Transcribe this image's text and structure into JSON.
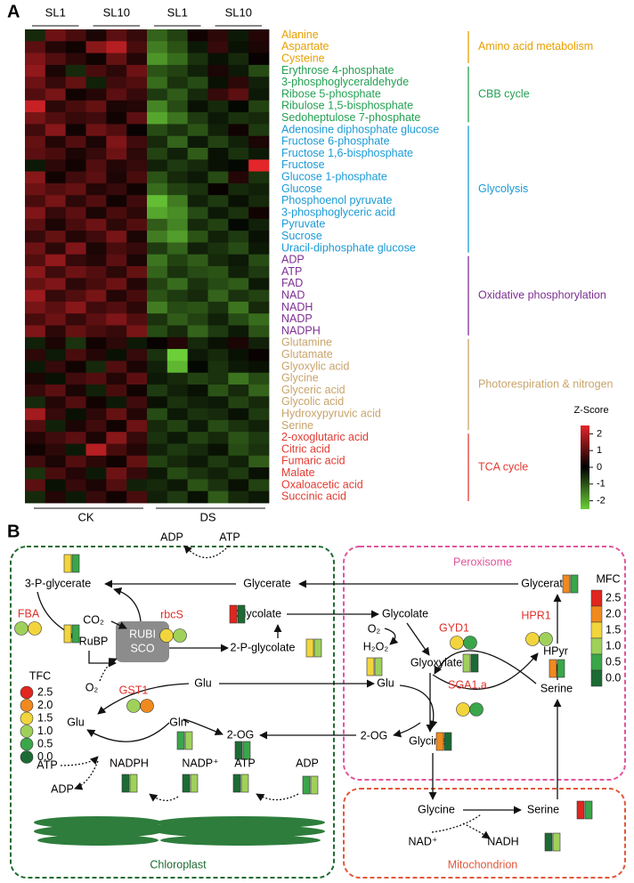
{
  "panels": [
    "A",
    "B"
  ],
  "chart_data": {
    "type": "heatmap",
    "columns": [
      "SL1",
      "SL10",
      "SL1",
      "SL10"
    ],
    "column_groups": [
      "CK",
      "DS"
    ],
    "groups": [
      {
        "name": "Amino acid metabolism",
        "color": "#e8a000",
        "rows": [
          "Alanine",
          "Aspartate",
          "Cysteine"
        ]
      },
      {
        "name": "CBB cycle",
        "color": "#23a052",
        "rows": [
          "Erythrose 4-phosphate",
          "3-phosphoglyceraldehyde",
          "Ribose 5-phosphate",
          "Ribulose 1,5-bisphosphate",
          "Sedoheptulose 7-phosphate"
        ]
      },
      {
        "name": "Glycolysis",
        "color": "#1b9ad6",
        "rows": [
          "Adenosine diphosphate glucose",
          "Fructose 6-phosphate",
          "Fructose 1,6-bisphosphate",
          "Fructose",
          "Glucose 1-phosphate",
          "Glucose",
          "Phosphoenol pyruvate",
          "3-phosphoglyceric acid",
          "Pyruvate",
          "Sucrose",
          "Uracil-diphosphate glucose"
        ]
      },
      {
        "name": "Oxidative phosphorylation",
        "color": "#7d2f92",
        "rows": [
          "ADP",
          "ATP",
          "FAD",
          "NAD",
          "NADH",
          "NADP",
          "NADPH"
        ]
      },
      {
        "name": "Photorespiration & nitrogen",
        "color": "#c8a46a",
        "rows": [
          "Glutamine",
          "Glutamate",
          "Glyoxylic acid",
          "Glycine",
          "Glyceric acid",
          "Glycolic acid",
          "Hydroxypyruvic acid",
          "Serine"
        ]
      },
      {
        "name": "TCA cycle",
        "color": "#e23b33",
        "rows": [
          "2-oxoglutaric acid",
          "Citric acid",
          "Fumaric acid",
          "Malate",
          "Oxaloacetic acid",
          "Succinic acid"
        ]
      }
    ],
    "values": [
      [
        -0.5,
        1.2,
        0.8,
        0.3,
        1.0,
        0.6,
        -1.2,
        -0.8,
        0.2,
        0.5,
        -0.3,
        0.4
      ],
      [
        1.0,
        0.4,
        0.2,
        1.5,
        2.0,
        0.8,
        -1.5,
        -1.0,
        -0.3,
        0.6,
        -0.2,
        0.3
      ],
      [
        1.4,
        0.9,
        0.5,
        0.2,
        1.1,
        0.4,
        -1.8,
        -1.3,
        -0.6,
        -0.2,
        -0.5,
        0.1
      ],
      [
        1.6,
        0.3,
        -0.5,
        0.8,
        0.5,
        1.2,
        -1.0,
        -0.8,
        -0.4,
        0.3,
        -0.3,
        -0.9
      ],
      [
        1.2,
        0.6,
        1.1,
        -0.4,
        0.7,
        0.9,
        -1.3,
        -0.6,
        -0.9,
        -0.2,
        0.5,
        -0.4
      ],
      [
        0.9,
        1.3,
        0.2,
        0.4,
        1.0,
        0.6,
        -0.7,
        -1.1,
        -0.5,
        0.6,
        1.0,
        -0.3
      ],
      [
        2.2,
        0.5,
        0.8,
        1.1,
        0.3,
        0.4,
        -1.6,
        -0.9,
        -0.2,
        -0.5,
        -0.1,
        -0.8
      ],
      [
        1.3,
        0.9,
        0.6,
        0.7,
        0.2,
        1.0,
        -2.0,
        -1.4,
        -0.7,
        -0.3,
        -0.6,
        -0.5
      ],
      [
        0.7,
        1.5,
        0.2,
        1.2,
        0.9,
        0.1,
        -0.9,
        -0.6,
        -1.0,
        -0.4,
        0.2,
        -0.7
      ],
      [
        1.1,
        0.4,
        0.9,
        0.3,
        1.4,
        0.7,
        -0.5,
        -1.2,
        -0.3,
        -0.8,
        -0.4,
        0.3
      ],
      [
        1.0,
        0.8,
        0.3,
        0.6,
        1.2,
        0.5,
        -0.8,
        -0.4,
        -1.1,
        -0.2,
        -0.6,
        -0.3
      ],
      [
        -0.3,
        0.5,
        0.2,
        0.9,
        0.4,
        0.6,
        -0.4,
        -0.7,
        -0.5,
        -0.2,
        -0.1,
        2.5
      ],
      [
        1.5,
        0.2,
        0.7,
        1.0,
        0.3,
        0.8,
        -1.0,
        -0.5,
        -0.3,
        -0.9,
        0.4,
        -0.6
      ],
      [
        1.2,
        0.9,
        1.1,
        0.4,
        0.6,
        0.2,
        -1.3,
        -0.8,
        -0.6,
        0.1,
        -0.5,
        -0.4
      ],
      [
        0.8,
        1.3,
        0.5,
        0.9,
        0.2,
        0.7,
        -2.3,
        -1.5,
        -0.4,
        -0.7,
        -0.2,
        -0.5
      ],
      [
        1.4,
        0.6,
        1.0,
        0.3,
        0.8,
        0.5,
        -2.0,
        -1.7,
        -0.9,
        -0.3,
        -0.6,
        0.2
      ],
      [
        1.0,
        0.3,
        0.8,
        1.2,
        0.5,
        0.9,
        -1.1,
        -1.6,
        -0.5,
        -0.8,
        -0.1,
        -0.4
      ],
      [
        0.6,
        1.1,
        0.4,
        0.7,
        1.3,
        0.3,
        -1.5,
        -1.9,
        -1.0,
        -0.4,
        -0.7,
        -0.2
      ],
      [
        1.2,
        0.5,
        1.4,
        0.3,
        0.8,
        0.6,
        -0.7,
        -1.2,
        -0.4,
        -0.6,
        -0.9,
        -0.3
      ],
      [
        0.9,
        1.6,
        0.6,
        0.4,
        1.0,
        0.3,
        -1.4,
        -0.8,
        -1.1,
        -0.5,
        -0.3,
        -0.9
      ],
      [
        1.5,
        0.7,
        1.2,
        0.9,
        0.5,
        1.1,
        -1.2,
        -0.6,
        -0.9,
        -1.0,
        -0.4,
        -0.7
      ],
      [
        1.1,
        1.4,
        0.5,
        0.8,
        1.2,
        0.4,
        -0.8,
        -1.3,
        -0.6,
        -0.9,
        -1.1,
        -0.3
      ],
      [
        1.7,
        0.6,
        0.9,
        1.3,
        0.4,
        0.8,
        -1.0,
        -0.7,
        -0.5,
        -1.2,
        -0.6,
        -0.8
      ],
      [
        1.3,
        1.0,
        1.5,
        0.7,
        0.9,
        0.5,
        -1.5,
        -0.9,
        -1.0,
        -0.6,
        -1.4,
        -0.5
      ],
      [
        0.8,
        1.2,
        0.6,
        1.0,
        1.4,
        0.9,
        -0.6,
        -1.1,
        -0.8,
        -0.4,
        -0.9,
        -1.3
      ],
      [
        1.4,
        0.5,
        1.1,
        0.8,
        0.6,
        1.3,
        -0.9,
        -0.5,
        -1.2,
        -0.7,
        -0.3,
        -1.0
      ],
      [
        -0.4,
        0.3,
        -0.6,
        0.2,
        0.5,
        -0.3,
        0.1,
        0.4,
        -0.5,
        -0.2,
        0.3,
        -0.4
      ],
      [
        0.5,
        -0.3,
        0.8,
        0.4,
        -0.2,
        0.6,
        -0.6,
        -2.5,
        -0.3,
        -0.5,
        -0.2,
        0.1
      ],
      [
        -0.3,
        0.6,
        0.2,
        -0.5,
        0.9,
        0.3,
        -0.4,
        -2.2,
        -0.1,
        -0.6,
        -0.3,
        -0.2
      ],
      [
        0.3,
        -0.2,
        0.7,
        0.9,
        0.4,
        1.0,
        -0.3,
        -0.5,
        -0.8,
        -0.6,
        -1.4,
        -0.9
      ],
      [
        0.6,
        1.0,
        0.3,
        -0.4,
        0.8,
        0.2,
        -0.7,
        -0.4,
        -0.2,
        -1.0,
        -0.5,
        -1.2
      ],
      [
        -0.5,
        0.4,
        0.9,
        0.2,
        -0.3,
        0.7,
        -0.2,
        -0.6,
        -0.4,
        -0.3,
        -0.8,
        -0.5
      ],
      [
        1.8,
        0.6,
        -0.2,
        0.5,
        1.1,
        0.4,
        -0.9,
        -0.3,
        -0.6,
        -0.5,
        -0.2,
        -0.7
      ],
      [
        0.9,
        -0.4,
        0.3,
        0.7,
        0.2,
        1.2,
        -0.5,
        -0.8,
        -0.3,
        -0.9,
        -0.6,
        -0.4
      ],
      [
        0.4,
        0.7,
        1.0,
        0.3,
        1.5,
        0.6,
        -0.6,
        -0.3,
        -0.8,
        -0.5,
        -1.0,
        -0.7
      ],
      [
        0.2,
        0.5,
        -0.3,
        2.0,
        0.8,
        0.4,
        -0.4,
        -0.7,
        -0.5,
        -0.2,
        -0.9,
        -0.6
      ],
      [
        0.7,
        0.3,
        0.9,
        0.5,
        0.2,
        1.1,
        -0.8,
        -0.5,
        -0.3,
        -0.7,
        -0.4,
        -1.1
      ],
      [
        -0.6,
        0.8,
        0.4,
        -0.3,
        1.2,
        0.6,
        -0.3,
        -0.9,
        -0.6,
        -0.4,
        -0.7,
        -0.2
      ],
      [
        1.0,
        -0.2,
        0.6,
        0.3,
        0.9,
        -0.4,
        -0.5,
        -0.3,
        -1.0,
        -0.6,
        -0.2,
        -0.8
      ],
      [
        -0.5,
        0.4,
        -0.3,
        0.6,
        0.2,
        0.8,
        -0.4,
        -0.7,
        -0.2,
        -1.1,
        -0.5,
        -0.3
      ]
    ],
    "colorbar_title": "Z-Score",
    "zlim": [
      -2.5,
      2.5
    ],
    "zticks": [
      -2,
      -1,
      0,
      1,
      2
    ],
    "colors": [
      "#6ccf38",
      "#000000",
      "#e3262a"
    ]
  },
  "diagram": {
    "compartments": [
      {
        "name": "Chloroplast",
        "color": "#1e6b30"
      },
      {
        "name": "Peroxisome",
        "color": "#e0569a"
      },
      {
        "name": "Mitochondrion",
        "color": "#e2583a"
      }
    ],
    "rubisco": [
      "RUBI",
      "SCO"
    ],
    "genes": [
      {
        "name": "FBA",
        "tfc": [
          1.0,
          1.5
        ]
      },
      {
        "name": "rbcS",
        "tfc": [
          1.5,
          1.0
        ]
      },
      {
        "name": "GYD1",
        "tfc": [
          1.5,
          0.5
        ]
      },
      {
        "name": "HPR1",
        "tfc": [
          1.5,
          1.0
        ]
      },
      {
        "name": "GST1",
        "tfc": [
          1.0,
          2.0
        ]
      },
      {
        "name": "SGA1.a",
        "tfc": [
          1.5,
          0.5
        ]
      }
    ],
    "metabolites": [
      {
        "name": "ADP"
      },
      {
        "name": "ATP"
      },
      {
        "name": "3-P-glycerate",
        "mfc": [
          1.5,
          0.5
        ]
      },
      {
        "name": "Glycerate"
      },
      {
        "name": "Glycerate",
        "mfc": [
          2.0,
          0.5
        ]
      },
      {
        "name": "CO₂"
      },
      {
        "name": "RuBP",
        "mfc": [
          1.5,
          0.5
        ]
      },
      {
        "name": "Glycolate",
        "mfc": [
          2.5,
          0.0
        ]
      },
      {
        "name": "Glycolate"
      },
      {
        "name": "O₂"
      },
      {
        "name": "H₂O₂"
      },
      {
        "name": "Glyoxylate",
        "mfc": [
          1.0,
          0.0
        ]
      },
      {
        "name": "2-P-glycolate",
        "mfc": [
          1.5,
          1.0
        ]
      },
      {
        "name": "HPyr",
        "mfc": [
          2.0,
          0.5
        ]
      },
      {
        "name": "Serine"
      },
      {
        "name": "O₂"
      },
      {
        "name": "Glu"
      },
      {
        "name": "Glu",
        "mfc": [
          1.5,
          1.0
        ]
      },
      {
        "name": "Glu"
      },
      {
        "name": "Gln",
        "mfc": [
          0.5,
          1.0
        ]
      },
      {
        "name": "2-OG",
        "mfc": [
          0.0,
          0.5
        ]
      },
      {
        "name": "2-OG"
      },
      {
        "name": "Glycine",
        "mfc": [
          2.0,
          0.0
        ]
      },
      {
        "name": "ATP"
      },
      {
        "name": "ADP"
      },
      {
        "name": "NADPH",
        "mfc": [
          0.0,
          1.0
        ]
      },
      {
        "name": "NADP⁺",
        "mfc": [
          0.0,
          1.0
        ]
      },
      {
        "name": "ATP",
        "mfc": [
          0.0,
          1.0
        ]
      },
      {
        "name": "ADP",
        "mfc": [
          0.5,
          1.0
        ]
      },
      {
        "name": "Glycine"
      },
      {
        "name": "Serine",
        "mfc": [
          2.5,
          0.5
        ]
      },
      {
        "name": "NAD⁺"
      },
      {
        "name": "NADH",
        "mfc": [
          0.0,
          1.0
        ]
      }
    ],
    "tfc_legend": {
      "title": "TFC",
      "ticks": [
        2.5,
        {
          "value": 2.0,
          "label": "2.0"
        },
        1.5,
        {
          "value": 1.0,
          "label": "1.0"
        },
        0.5,
        {
          "value": 0.0,
          "label": "0.0"
        }
      ],
      "colors": [
        "#e0261f",
        "#f08a1e",
        "#f2d53c",
        "#9fd15a",
        "#3aa64a",
        "#1d6b34"
      ]
    },
    "mfc_legend": {
      "title": "MFC",
      "ticks": [
        2.5,
        {
          "value": 2.0,
          "label": "2.0"
        },
        1.5,
        {
          "value": 1.0,
          "label": "1.0"
        },
        0.5,
        {
          "value": 0.0,
          "label": "0.0"
        }
      ],
      "colors": [
        "#e0261f",
        "#f08a1e",
        "#f2d53c",
        "#9fd15a",
        "#3aa64a",
        "#1d6b34"
      ]
    }
  }
}
